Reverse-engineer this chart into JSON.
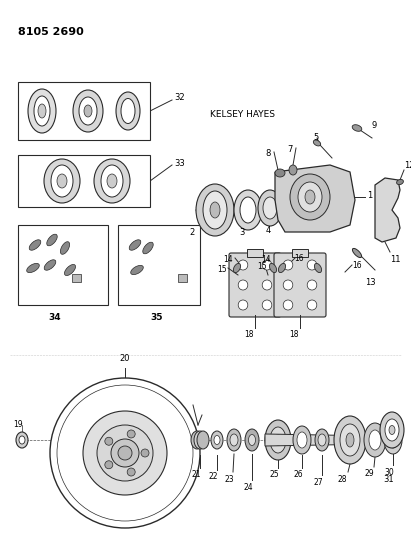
{
  "title_code": "8105 2690",
  "bg_color": "#ffffff",
  "line_color": "#2a2a2a",
  "kelsey_hayes_label": "KELSEY HAYES",
  "fig_w": 4.11,
  "fig_h": 5.33,
  "dpi": 100
}
